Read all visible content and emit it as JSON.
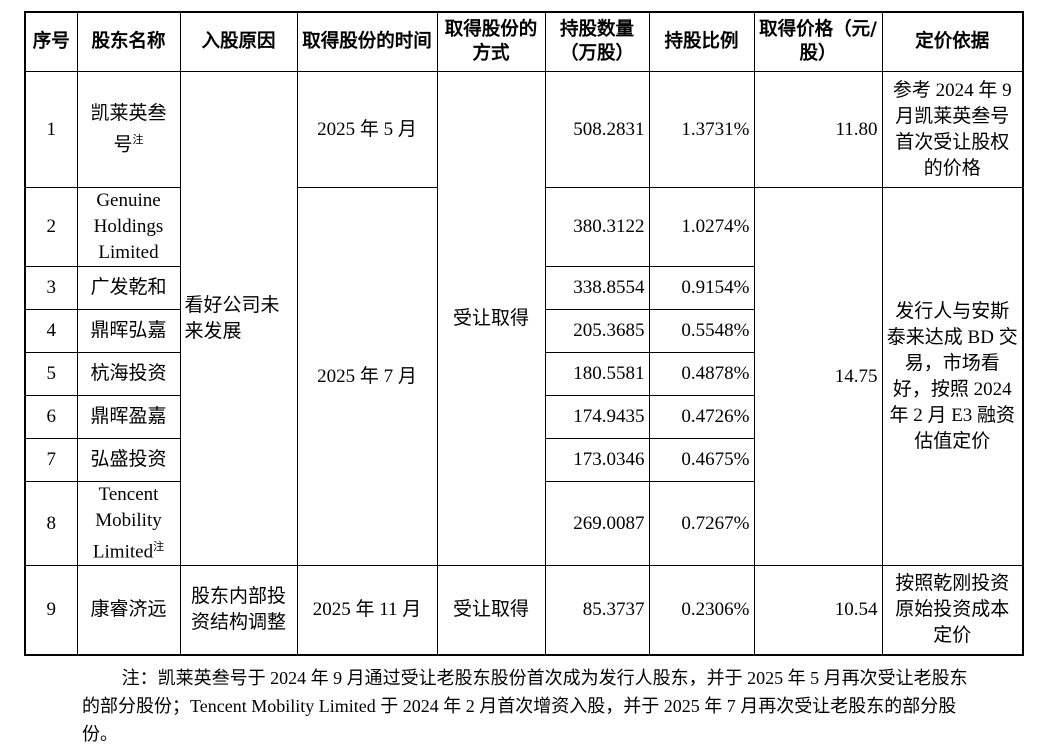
{
  "table": {
    "headers": [
      "序号",
      "股东名称",
      "入股原因",
      "取得股份的时间",
      "取得股份的方式",
      "持股数量（万股）",
      "持股比例",
      "取得价格（元/股）",
      "定价依据"
    ],
    "blocks": [
      {
        "reason": "看好公司未来发展",
        "method": "受让取得",
        "groups": [
          {
            "time": "2025 年 5 月",
            "price": "11.80",
            "basis": "参考 2024 年 9 月凯莱英叁号首次受让股权的价格",
            "holders": [
              {
                "no": "1",
                "name": "凯莱英叁号",
                "note": "注",
                "shares": "508.2831",
                "ratio": "1.3731%"
              }
            ]
          },
          {
            "time": "2025 年 7 月",
            "price": "14.75",
            "basis": "发行人与安斯泰来达成 BD 交易，市场看好，按照 2024 年 2 月 E3 融资估值定价",
            "holders": [
              {
                "no": "2",
                "name": "Genuine Holdings Limited",
                "shares": "380.3122",
                "ratio": "1.0274%"
              },
              {
                "no": "3",
                "name": "广发乾和",
                "shares": "338.8554",
                "ratio": "0.9154%"
              },
              {
                "no": "4",
                "name": "鼎晖弘嘉",
                "shares": "205.3685",
                "ratio": "0.5548%"
              },
              {
                "no": "5",
                "name": "杭海投资",
                "shares": "180.5581",
                "ratio": "0.4878%"
              },
              {
                "no": "6",
                "name": "鼎晖盈嘉",
                "shares": "174.9435",
                "ratio": "0.4726%"
              },
              {
                "no": "7",
                "name": "弘盛投资",
                "shares": "173.0346",
                "ratio": "0.4675%"
              },
              {
                "no": "8",
                "name": "Tencent Mobility Limited",
                "note": "注",
                "shares": "269.0087",
                "ratio": "0.7267%"
              }
            ]
          }
        ]
      },
      {
        "reason": "股东内部投资结构调整",
        "method": "受让取得",
        "groups": [
          {
            "time": "2025 年 11 月",
            "price": "10.54",
            "basis": "按照乾刚投资原始投资成本定价",
            "holders": [
              {
                "no": "9",
                "name": "康睿济远",
                "shares": "85.3737",
                "ratio": "0.2306%"
              }
            ]
          }
        ]
      }
    ],
    "note": "注：凯莱英叁号于 2024 年 9 月通过受让老股东股份首次成为发行人股东，并于 2025 年 5 月再次受让老股东的部分股份；Tencent Mobility Limited 于 2024 年 2 月首次增资入股，并于 2025 年 7 月再次受让老股东的部分股份。"
  }
}
